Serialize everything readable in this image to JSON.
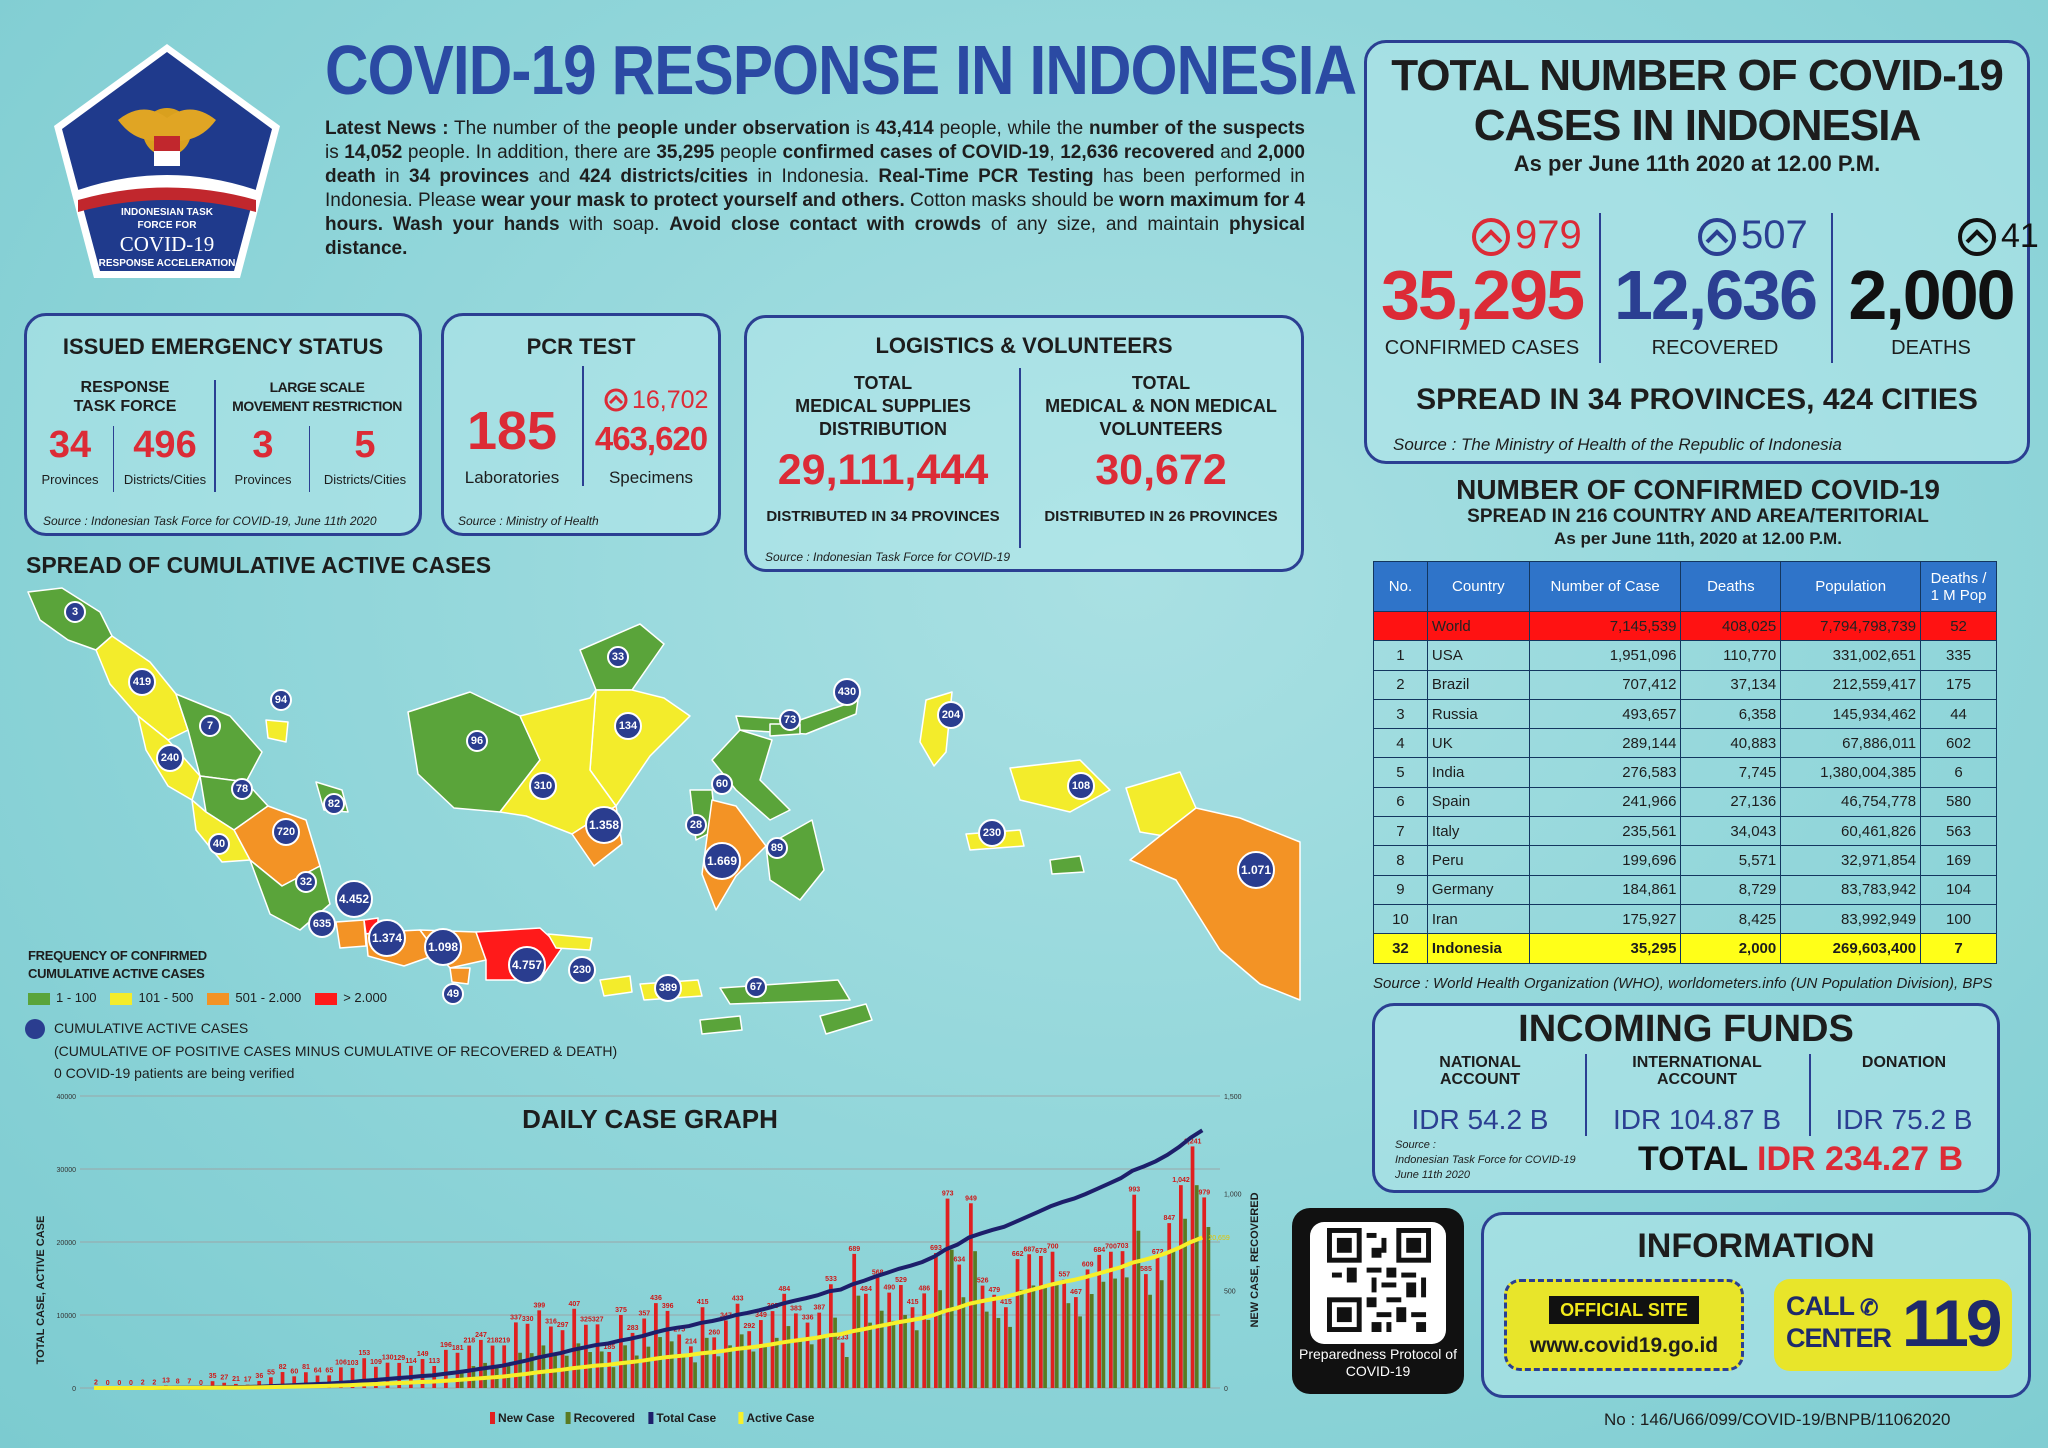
{
  "header": {
    "title": "COVID-19 RESPONSE IN INDONESIA",
    "logo": {
      "line1": "INDONESIAN TASK",
      "line2": "FORCE FOR",
      "line3": "COVID-19",
      "line4": "RESPONSE ACCELERATION"
    },
    "news": [
      {
        "t": "Latest News :",
        "b": true
      },
      {
        "t": " The number of the ",
        "b": false
      },
      {
        "t": "people under observation",
        "b": true
      },
      {
        "t": " is ",
        "b": false
      },
      {
        "t": "43,414",
        "b": true
      },
      {
        "t": " people, while the ",
        "b": false
      },
      {
        "t": "number of the suspects",
        "b": true
      },
      {
        "t": " is ",
        "b": false
      },
      {
        "t": "14,052",
        "b": true
      },
      {
        "t": " people. In addition, there are ",
        "b": false
      },
      {
        "t": "35,295",
        "b": true
      },
      {
        "t": " people ",
        "b": false
      },
      {
        "t": "confirmed cases of COVID-19",
        "b": true
      },
      {
        "t": ", ",
        "b": false
      },
      {
        "t": "12,636 recovered",
        "b": true
      },
      {
        "t": " and ",
        "b": false
      },
      {
        "t": "2,000 death",
        "b": true
      },
      {
        "t": " in ",
        "b": false
      },
      {
        "t": "34 provinces",
        "b": true
      },
      {
        "t": " and ",
        "b": false
      },
      {
        "t": "424 districts/cities",
        "b": true
      },
      {
        "t": " in Indonesia. ",
        "b": false
      },
      {
        "t": "Real-Time PCR Testing",
        "b": true
      },
      {
        "t": " has been performed in Indonesia. Please ",
        "b": false
      },
      {
        "t": "wear your mask to protect yourself and others.",
        "b": true
      },
      {
        "t": " Cotton masks should be ",
        "b": false
      },
      {
        "t": "worn maximum for 4 hours. Wash your hands",
        "b": true
      },
      {
        "t": " with soap. ",
        "b": false
      },
      {
        "t": "Avoid close contact with crowds",
        "b": true
      },
      {
        "t": " of any size, and maintain ",
        "b": false
      },
      {
        "t": "physical distance.",
        "b": true
      }
    ]
  },
  "emergency": {
    "title": "ISSUED EMERGENCY STATUS",
    "col1_title_1": "RESPONSE",
    "col1_title_2": "TASK FORCE",
    "col2_title_1": "LARGE SCALE",
    "col2_title_2": "MOVEMENT RESTRICTION",
    "v1": "34",
    "l1": "Provinces",
    "v2": "496",
    "l2": "Districts/Cities",
    "v3": "3",
    "l3": "Provinces",
    "v4": "5",
    "l4": "Districts/Cities",
    "source": "Source : Indonesian Task Force for COVID-19, June 11th 2020"
  },
  "pcr": {
    "title": "PCR TEST",
    "labs": "185",
    "labs_label": "Laboratories",
    "increase": "16,702",
    "specimens": "463,620",
    "specimens_label": "Specimens",
    "source": "Source : Ministry of Health"
  },
  "logistics": {
    "title": "LOGISTICS & VOLUNTEERS",
    "left_title_1": "TOTAL",
    "left_title_2": "MEDICAL SUPPLIES",
    "left_title_3": "DISTRIBUTION",
    "left_value": "29,111,444",
    "left_note": "DISTRIBUTED IN 34 PROVINCES",
    "right_title_1": "TOTAL",
    "right_title_2": "MEDICAL & NON MEDICAL",
    "right_title_3": "VOLUNTEERS",
    "right_value": "30,672",
    "right_note": "DISTRIBUTED IN 26 PROVINCES",
    "source": "Source : Indonesian Task Force for COVID-19"
  },
  "totals": {
    "title_1": "TOTAL NUMBER OF COVID-19",
    "title_2": "CASES IN INDONESIA",
    "as_of": "As per June 11th 2020 at 12.00 P.M.",
    "confirmed_inc": "979",
    "confirmed": "35,295",
    "confirmed_label": "CONFIRMED CASES",
    "recovered_inc": "507",
    "recovered": "12,636",
    "recovered_label": "RECOVERED",
    "deaths_inc": "41",
    "deaths": "2,000",
    "deaths_label": "DEATHS",
    "spread": "SPREAD IN 34 PROVINCES, 424 CITIES",
    "source": "Source : The Ministry of Health of the Republic of Indonesia",
    "colors": {
      "confirmed": "#dc2b36",
      "recovered": "#2b3f92",
      "deaths": "#111111"
    }
  },
  "world": {
    "title_1": "NUMBER OF CONFIRMED COVID-19",
    "title_2": "SPREAD IN 216 COUNTRY AND AREA/TERITORIAL",
    "title_3": "As per June 11th, 2020 at 12.00 P.M.",
    "headers": [
      "No.",
      "Country",
      "Number of Case",
      "Deaths",
      "Population",
      "Deaths / 1 M Pop"
    ],
    "rows": [
      [
        "",
        "World",
        "7,145,539",
        "408,025",
        "7,794,798,739",
        "52"
      ],
      [
        "1",
        "USA",
        "1,951,096",
        "110,770",
        "331,002,651",
        "335"
      ],
      [
        "2",
        "Brazil",
        "707,412",
        "37,134",
        "212,559,417",
        "175"
      ],
      [
        "3",
        "Russia",
        "493,657",
        "6,358",
        "145,934,462",
        "44"
      ],
      [
        "4",
        "UK",
        "289,144",
        "40,883",
        "67,886,011",
        "602"
      ],
      [
        "5",
        "India",
        "276,583",
        "7,745",
        "1,380,004,385",
        "6"
      ],
      [
        "6",
        "Spain",
        "241,966",
        "27,136",
        "46,754,778",
        "580"
      ],
      [
        "7",
        "Italy",
        "235,561",
        "34,043",
        "60,461,826",
        "563"
      ],
      [
        "8",
        "Peru",
        "199,696",
        "5,571",
        "32,971,854",
        "169"
      ],
      [
        "9",
        "Germany",
        "184,861",
        "8,729",
        "83,783,942",
        "104"
      ],
      [
        "10",
        "Iran",
        "175,927",
        "8,425",
        "83,992,949",
        "100"
      ],
      [
        "32",
        "Indonesia",
        "35,295",
        "2,000",
        "269,603,400",
        "7"
      ]
    ],
    "source": "Source : World Health Organization (WHO), worldometers.info (UN Population Division), BPS"
  },
  "funds": {
    "title": "INCOMING FUNDS",
    "national_1": "NATIONAL",
    "national_2": "ACCOUNT",
    "national_value": "IDR 54.2 B",
    "international_1": "INTERNATIONAL",
    "international_2": "ACCOUNT",
    "international_value": "IDR 104.87 B",
    "donation_label": "DONATION",
    "donation_value": "IDR 75.2 B",
    "source_1": "Source :",
    "source_2": "Indonesian Task Force for COVID-19",
    "source_3": "June 11th 2020",
    "total_label": "TOTAL",
    "total_value": "IDR 234.27 B"
  },
  "qr": {
    "caption_1": "Preparedness Protocol of",
    "caption_2": "COVID-19"
  },
  "information": {
    "title": "INFORMATION",
    "official_site_label": "OFFICIAL SITE",
    "site_url": "www.covid19.go.id",
    "call_1": "CALL",
    "call_2": "CENTER",
    "call_number": "119"
  },
  "map": {
    "title": "SPREAD OF CUMULATIVE ACTIVE CASES",
    "legend_title_1": "FREQUENCY OF CONFIRMED",
    "legend_title_2": "CUMULATIVE ACTIVE CASES",
    "legend": [
      {
        "label": "1 - 100",
        "color": "#5aa43a"
      },
      {
        "label": "101 - 500",
        "color": "#f3ec2b"
      },
      {
        "label": "501 - 2.000",
        "color": "#f39325"
      },
      {
        "label": "> 2.000",
        "color": "#ff1a1a"
      }
    ],
    "dot_legend": "CUMULATIVE ACTIVE CASES",
    "dot_note": "(CUMULATIVE OF POSITIVE CASES MINUS CUMULATIVE OF RECOVERED  & DEATH)",
    "verify_note": "0 COVID-19 patients are being verified",
    "markers": [
      "3",
      "419",
      "94",
      "7",
      "240",
      "78",
      "82",
      "720",
      "40",
      "32",
      "4.452",
      "635",
      "1.374",
      "1.098",
      "4.757",
      "49",
      "230",
      "389",
      "67",
      "96",
      "33",
      "134",
      "310",
      "1.358",
      "73",
      "430",
      "60",
      "28",
      "1.669",
      "89",
      "204",
      "108",
      "230",
      "1.071"
    ]
  },
  "chart_data": {
    "type": "bar",
    "title": "DAILY CASE GRAPH",
    "ylabel": "TOTAL CASE, ACTIVE CASE",
    "y2label": "NEW CASE, RECOVERED",
    "left_ticks": [
      "40000",
      "30000",
      "20000",
      "10000",
      "0"
    ],
    "right_ticks": [
      "1,500",
      "1,000",
      "500",
      "0"
    ],
    "legend": [
      "New Case",
      "Recovered",
      "Total Case",
      "Active Case"
    ],
    "series_colors": {
      "new": "#e02020",
      "recovered": "#5a7a22",
      "total": "#1d1f6b",
      "active": "#f6f02a"
    },
    "new_case_labels": [
      "2",
      "0",
      "0",
      "0",
      "2",
      "2",
      "13",
      "8",
      "7",
      "0",
      "35",
      "27",
      "21",
      "17",
      "36",
      "55",
      "82",
      "60",
      "81",
      "64",
      "65",
      "106",
      "103",
      "153",
      "109",
      "130",
      "129",
      "114",
      "149",
      "113",
      "196",
      "181",
      "218",
      "247",
      "218",
      "219",
      "337",
      "330",
      "399",
      "316",
      "297",
      "407",
      "325",
      "327",
      "185",
      "375",
      "283",
      "357",
      "436",
      "396",
      "275",
      "214",
      "415",
      "260",
      "347",
      "433",
      "292",
      "349",
      "395",
      "484",
      "383",
      "336",
      "387",
      "533",
      "233",
      "689",
      "484",
      "568",
      "490",
      "529",
      "415",
      "486",
      "693",
      "973",
      "634",
      "949",
      "526",
      "479",
      "415",
      "662",
      "687",
      "678",
      "700",
      "557",
      "467",
      "609",
      "684",
      "700",
      "703",
      "993",
      "585",
      "672",
      "847",
      "1,042",
      "1,241",
      "979"
    ],
    "highlight_labels": [
      "1,241",
      "1,042",
      "993",
      "979",
      "973",
      "949",
      "847"
    ],
    "final_total_label": "35,295",
    "final_active_label": "20,659"
  },
  "footer": {
    "doc_no": "No : 146/U66/099/COVID-19/BNPB/11062020"
  }
}
